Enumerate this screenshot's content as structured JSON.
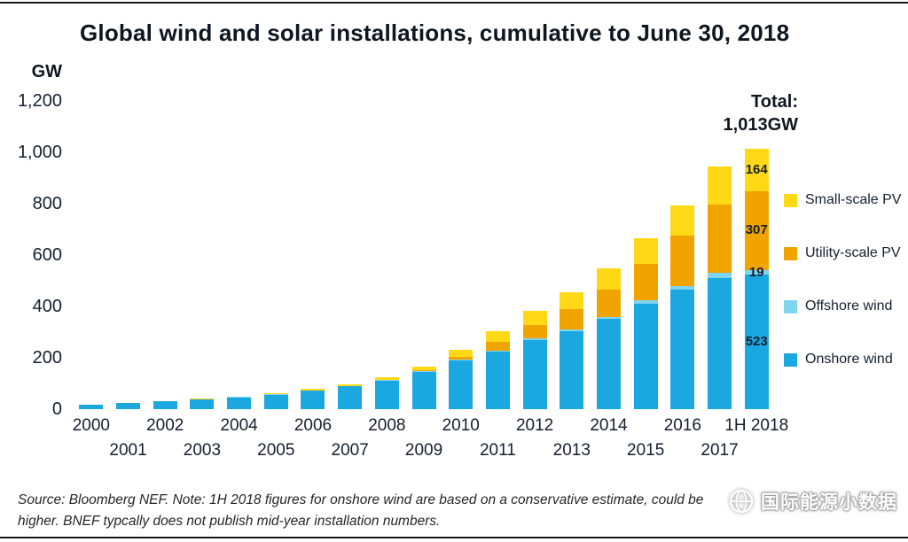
{
  "title": "Global wind and solar installations, cumulative to June 30, 2018",
  "y_axis": {
    "unit": "GW",
    "ticks": [
      "1,200",
      "1,000",
      "800",
      "600",
      "400",
      "200",
      "0"
    ]
  },
  "total": {
    "label": "Total:",
    "value": "1,013GW"
  },
  "legend": [
    {
      "label": "Small-scale PV",
      "color": "#FFD915"
    },
    {
      "label": "Utility-scale PV",
      "color": "#F1A400"
    },
    {
      "label": "Offshore wind",
      "color": "#7FD4EE"
    },
    {
      "label": "Onshore wind",
      "color": "#1BA7E0"
    }
  ],
  "chart_data": {
    "type": "bar",
    "stacked": true,
    "title": "Global wind and solar installations, cumulative to June 30, 2018",
    "ylabel": "GW",
    "ylim": [
      0,
      1200
    ],
    "grid": false,
    "legend_position": "right",
    "categories": [
      "2000",
      "2001",
      "2002",
      "2003",
      "2004",
      "2005",
      "2006",
      "2007",
      "2008",
      "2009",
      "2010",
      "2011",
      "2012",
      "2013",
      "2014",
      "2015",
      "2016",
      "2017",
      "1H 2018"
    ],
    "series": [
      {
        "name": "Onshore wind",
        "color": "#1BA7E0",
        "values": [
          17,
          23,
          30,
          38,
          46,
          57,
          71,
          89,
          112,
          145,
          190,
          225,
          270,
          305,
          352,
          412,
          465,
          512,
          523
        ]
      },
      {
        "name": "Offshore wind",
        "color": "#7FD4EE",
        "values": [
          0,
          0,
          0,
          0,
          1,
          1,
          1,
          1,
          1,
          2,
          3,
          4,
          5,
          7,
          8,
          12,
          14,
          18,
          19
        ]
      },
      {
        "name": "Utility-scale PV",
        "color": "#F1A400",
        "values": [
          0,
          0,
          0,
          0,
          0,
          0,
          1,
          1,
          2,
          4,
          12,
          32,
          52,
          77,
          105,
          140,
          196,
          268,
          307
        ]
      },
      {
        "name": "Small-scale PV",
        "color": "#FFD915",
        "values": [
          1,
          1,
          2,
          2,
          3,
          4,
          5,
          7,
          9,
          13,
          25,
          43,
          55,
          67,
          85,
          103,
          120,
          147,
          164
        ]
      }
    ],
    "last_bar_value_labels": [
      "523",
      "19",
      "307",
      "164"
    ],
    "annotations": [
      "Total: 1,013GW"
    ]
  },
  "footer": {
    "line1": "Source: Bloomberg NEF. Note: 1H 2018 figures for onshore wind are based on a conservative estimate, could be",
    "line2": "higher. BNEF typcally does not publish mid-year installation numbers."
  },
  "watermark": {
    "text": "国际能源小数据"
  }
}
